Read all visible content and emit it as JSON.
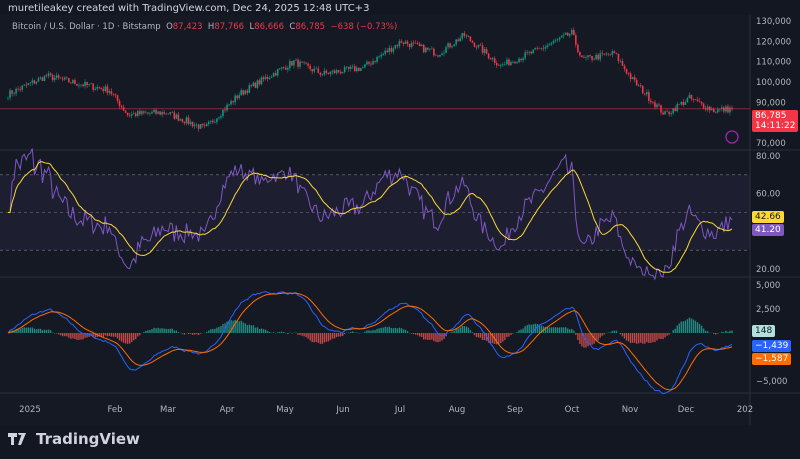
{
  "credit": "muretileakey created with TradingView.com, Dec 24, 2025 12:48 UTC+3",
  "legend": {
    "symbol": "Bitcoin / U.S. Dollar · 1D · Bitstamp",
    "o_label": "O",
    "o": "87,423",
    "h_label": "H",
    "h": "87,766",
    "l_label": "L",
    "l": "86,666",
    "c_label": "C",
    "c": "86,785",
    "change": "−638 (−0.73%)"
  },
  "price_tag": {
    "price": "86,785",
    "countdown": "14:11:22"
  },
  "rsi_tags": {
    "ma": "42.66",
    "rsi": "41.20"
  },
  "macd_tags": {
    "hist": "148",
    "macd": "−1,439",
    "signal": "−1,587"
  },
  "colors": {
    "up": "#089981",
    "down": "#f23645",
    "rsi": "#7e57c2",
    "rsi_ma": "#fdd835",
    "macd": "#2962ff",
    "signal": "#ff6d00",
    "bg": "#151924"
  },
  "footer": {
    "brand": "TradingView",
    "logo_icon": "tradingview-logo"
  },
  "chart_data": [
    {
      "type": "candlestick",
      "title": "Bitcoin / U.S. Dollar · 1D · Bitstamp",
      "y_ticks": [
        "130,000",
        "120,000",
        "110,000",
        "100,000",
        "90,000",
        "70,000"
      ],
      "ylim": [
        70000,
        130000
      ],
      "x_ticks": [
        "2025",
        "Feb",
        "Mar",
        "Apr",
        "May",
        "Jun",
        "Jul",
        "Aug",
        "Sep",
        "Oct",
        "Nov",
        "Dec",
        "202"
      ],
      "approx_close_path": [
        [
          "2025-01-01",
          94000
        ],
        [
          "2025-01-20",
          103000
        ],
        [
          "2025-02-01",
          100000
        ],
        [
          "2025-02-20",
          96000
        ],
        [
          "2025-03-01",
          84000
        ],
        [
          "2025-03-20",
          85000
        ],
        [
          "2025-04-08",
          77000
        ],
        [
          "2025-04-25",
          94000
        ],
        [
          "2025-05-10",
          103000
        ],
        [
          "2025-05-22",
          110000
        ],
        [
          "2025-06-05",
          104000
        ],
        [
          "2025-06-25",
          107000
        ],
        [
          "2025-07-14",
          120000
        ],
        [
          "2025-08-01",
          114000
        ],
        [
          "2025-08-14",
          123000
        ],
        [
          "2025-09-01",
          108000
        ],
        [
          "2025-09-20",
          116000
        ],
        [
          "2025-10-06",
          124000
        ],
        [
          "2025-10-11",
          111000
        ],
        [
          "2025-10-27",
          114000
        ],
        [
          "2025-11-05",
          101000
        ],
        [
          "2025-11-21",
          84000
        ],
        [
          "2025-12-03",
          92000
        ],
        [
          "2025-12-15",
          86000
        ],
        [
          "2025-12-24",
          86785
        ]
      ]
    },
    {
      "type": "line",
      "title": "RSI",
      "y_ticks": [
        "80.00",
        "60.00",
        "20.00"
      ],
      "ylim": [
        20,
        80
      ],
      "bands": [
        30,
        50,
        70
      ]
    },
    {
      "type": "macd",
      "y_ticks": [
        "5,000",
        "2,500",
        "−5,000"
      ],
      "ylim": [
        -5000,
        5000
      ]
    }
  ]
}
